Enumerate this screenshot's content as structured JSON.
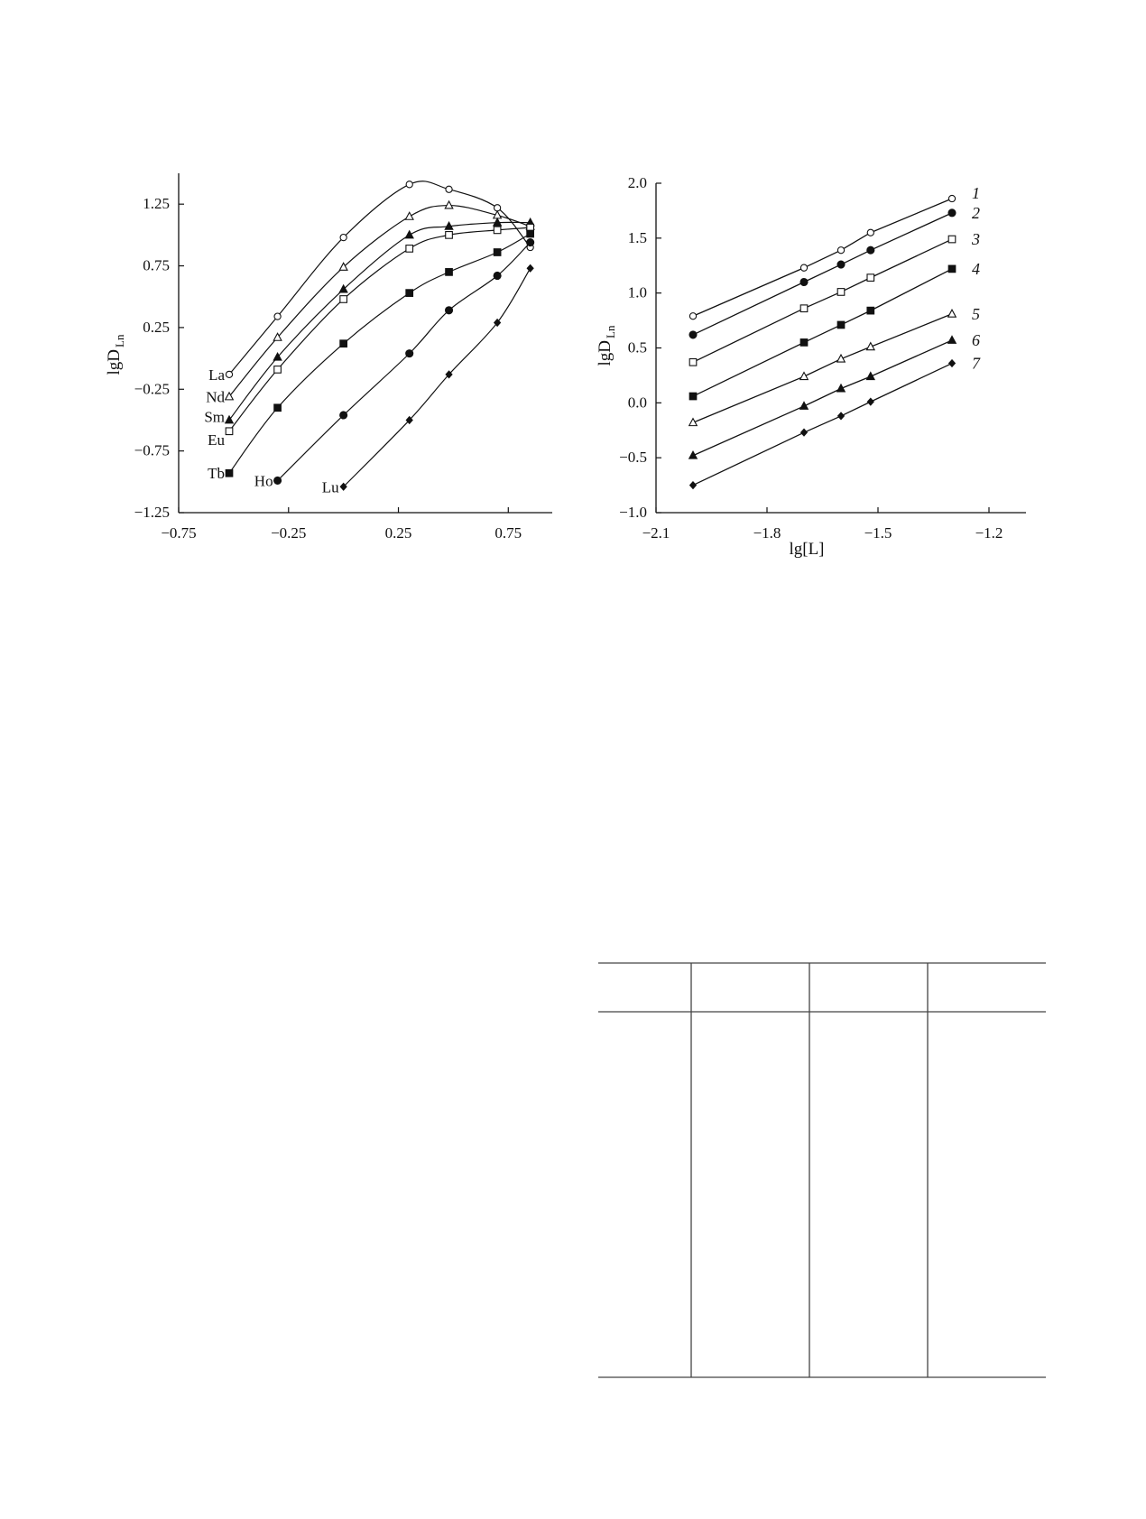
{
  "chart_data": [
    {
      "type": "line",
      "ylabel": "lgD",
      "ylabel_sub": "Ln",
      "xlabel": "",
      "xlim": [
        -0.75,
        0.95
      ],
      "ylim": [
        -1.25,
        1.5
      ],
      "xticks": [
        "-0.75",
        "-0.25",
        "0.25",
        "0.75"
      ],
      "xtick_values": [
        -0.75,
        -0.25,
        0.25,
        0.75
      ],
      "yticks": [
        "1.25",
        "0.75",
        "0.25",
        "-0.25",
        "-0.75",
        "-1.25"
      ],
      "ytick_values": [
        1.25,
        0.75,
        0.25,
        -0.25,
        -0.75,
        -1.25
      ],
      "grid": false,
      "curve": "smooth",
      "series": [
        {
          "name": "La",
          "marker": "open-circle",
          "x": [
            -0.52,
            -0.3,
            0.0,
            0.3,
            0.48,
            0.7,
            0.85
          ],
          "y": [
            -0.13,
            0.34,
            0.98,
            1.41,
            1.37,
            1.22,
            0.9
          ]
        },
        {
          "name": "Nd",
          "marker": "open-triangle",
          "x": [
            -0.52,
            -0.3,
            0.0,
            0.3,
            0.48,
            0.7,
            0.85
          ],
          "y": [
            -0.31,
            0.17,
            0.74,
            1.15,
            1.24,
            1.16,
            1.07
          ]
        },
        {
          "name": "Sm",
          "marker": "filled-triangle",
          "x": [
            -0.52,
            -0.3,
            0.0,
            0.3,
            0.48,
            0.7,
            0.85
          ],
          "y": [
            -0.5,
            0.01,
            0.56,
            1.0,
            1.07,
            1.1,
            1.1
          ]
        },
        {
          "name": "Eu",
          "marker": "open-square",
          "x": [
            -0.52,
            -0.3,
            0.0,
            0.3,
            0.48,
            0.7,
            0.85
          ],
          "y": [
            -0.59,
            -0.09,
            0.48,
            0.89,
            1.0,
            1.04,
            1.06
          ]
        },
        {
          "name": "Tb",
          "marker": "filled-square",
          "x": [
            -0.52,
            -0.3,
            0.0,
            0.3,
            0.48,
            0.7,
            0.85
          ],
          "y": [
            -0.93,
            -0.4,
            0.12,
            0.53,
            0.7,
            0.86,
            1.01
          ]
        },
        {
          "name": "Ho",
          "marker": "filled-circle",
          "x": [
            -0.3,
            0.0,
            0.3,
            0.48,
            0.7,
            0.85
          ],
          "y": [
            -0.99,
            -0.46,
            0.04,
            0.39,
            0.67,
            0.94
          ]
        },
        {
          "name": "Lu",
          "marker": "filled-diamond",
          "x": [
            0.0,
            0.3,
            0.48,
            0.7,
            0.85
          ],
          "y": [
            -1.04,
            -0.5,
            -0.13,
            0.29,
            0.73
          ]
        }
      ]
    },
    {
      "type": "line",
      "ylabel": "lgD",
      "ylabel_sub": "Ln",
      "xlabel": "lg[L]",
      "xlim": [
        -2.1,
        -1.1
      ],
      "ylim": [
        -1.0,
        2.0
      ],
      "xticks": [
        "-2.1",
        "-1.8",
        "-1.5",
        "-1.2"
      ],
      "xtick_values": [
        -2.1,
        -1.8,
        -1.5,
        -1.2
      ],
      "yticks": [
        "2.0",
        "1.5",
        "1.0",
        "0.5",
        "0.0",
        "-0.5",
        "-1.0"
      ],
      "ytick_values": [
        2.0,
        1.5,
        1.0,
        0.5,
        0.0,
        -0.5,
        -1.0
      ],
      "grid": false,
      "curve": "linear",
      "series": [
        {
          "name": "1",
          "marker": "open-circle",
          "x": [
            -2.0,
            -1.7,
            -1.6,
            -1.52,
            -1.3
          ],
          "y": [
            0.79,
            1.23,
            1.39,
            1.55,
            1.86
          ]
        },
        {
          "name": "2",
          "marker": "filled-circle",
          "x": [
            -2.0,
            -1.7,
            -1.6,
            -1.52,
            -1.3
          ],
          "y": [
            0.62,
            1.1,
            1.26,
            1.39,
            1.73
          ]
        },
        {
          "name": "3",
          "marker": "open-square",
          "x": [
            -2.0,
            -1.7,
            -1.6,
            -1.52,
            -1.3
          ],
          "y": [
            0.37,
            0.86,
            1.01,
            1.14,
            1.49
          ]
        },
        {
          "name": "4",
          "marker": "filled-square",
          "x": [
            -2.0,
            -1.7,
            -1.6,
            -1.52,
            -1.3
          ],
          "y": [
            0.06,
            0.55,
            0.71,
            0.84,
            1.22
          ]
        },
        {
          "name": "5",
          "marker": "open-triangle",
          "x": [
            -2.0,
            -1.7,
            -1.6,
            -1.52,
            -1.3
          ],
          "y": [
            -0.18,
            0.24,
            0.4,
            0.51,
            0.81
          ]
        },
        {
          "name": "6",
          "marker": "filled-triangle",
          "x": [
            -2.0,
            -1.7,
            -1.6,
            -1.52,
            -1.3
          ],
          "y": [
            -0.48,
            -0.03,
            0.13,
            0.24,
            0.57
          ]
        },
        {
          "name": "7",
          "marker": "filled-diamond",
          "x": [
            -2.0,
            -1.7,
            -1.6,
            -1.52,
            -1.3
          ],
          "y": [
            -0.75,
            -0.27,
            -0.12,
            0.01,
            0.36
          ]
        }
      ]
    }
  ],
  "table": {
    "columns": 4,
    "header": [
      "",
      "",
      "",
      ""
    ]
  }
}
